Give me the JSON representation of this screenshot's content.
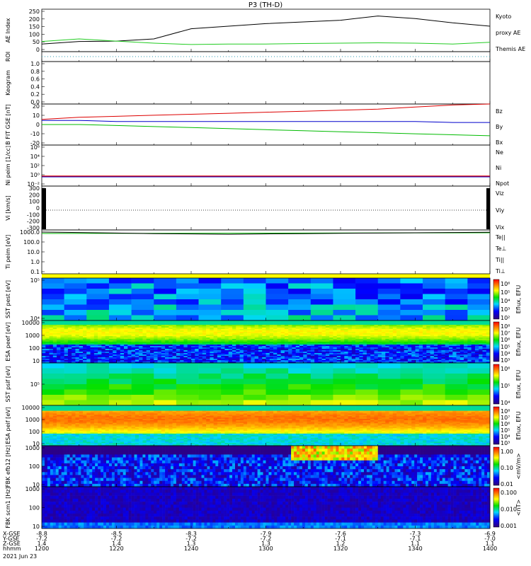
{
  "title": "P3 (TH-D)",
  "colors": {
    "ae_themis": "#000000",
    "ae_kyoto": "#22cc22",
    "red": "#dd0000",
    "green": "#00bb00",
    "blue": "#0000cc",
    "black": "#000000"
  },
  "panels": [
    {
      "id": "ae",
      "ylabel": [
        "AE Index"
      ],
      "ticks": [
        "250",
        "200",
        "150",
        "100",
        "50",
        "0"
      ],
      "legend": [
        {
          "text": "Kyoto",
          "color": "#22cc22"
        },
        {
          "text": "proxy AE",
          "color": "#22cc22"
        },
        {
          "text": "Themis AE",
          "color": "#000000"
        }
      ]
    },
    {
      "id": "roi",
      "ylabel": [
        "ROI"
      ],
      "ticks": [],
      "legend": []
    },
    {
      "id": "keogram",
      "ylabel": [
        "Keogram"
      ],
      "ticks": [
        "1.0",
        "0.8",
        "0.6",
        "0.4",
        "0.2",
        "0.0"
      ],
      "legend": []
    },
    {
      "id": "bfit",
      "ylabel": [
        "B FIT",
        "GSE",
        "[nT]"
      ],
      "ticks": [
        "20",
        "10",
        "0",
        "-10",
        "-20"
      ],
      "legend": [
        {
          "text": "Bz",
          "color": "#dd0000"
        },
        {
          "text": "By",
          "color": "#00bb00"
        },
        {
          "text": "Bx",
          "color": "#0000cc"
        }
      ]
    },
    {
      "id": "ni",
      "ylabel": [
        "Ni",
        "peim",
        "[1/cc]"
      ],
      "ticks": [
        "10⁶",
        "10⁴",
        "10²",
        "10⁰",
        "10⁻²"
      ],
      "legend": [
        {
          "text": "Ne",
          "color": "#dd0000"
        },
        {
          "text": "Ni",
          "color": "#000000"
        },
        {
          "text": "Npot",
          "color": "#0000cc"
        }
      ]
    },
    {
      "id": "vi",
      "ylabel": [
        "Vi",
        "[km/s]"
      ],
      "ticks": [
        "300",
        "200",
        "100",
        "0",
        "-100",
        "-200",
        "-300"
      ],
      "legend": [
        {
          "text": "Viz",
          "color": "#dd0000"
        },
        {
          "text": "Viy",
          "color": "#00bb00"
        },
        {
          "text": "Vix",
          "color": "#0000cc"
        }
      ]
    },
    {
      "id": "ti",
      "ylabel": [
        "Ti",
        "peim",
        "[eV]"
      ],
      "ticks": [
        "1000.0",
        "100.0",
        "10.0",
        "1.0",
        "0.1"
      ],
      "legend": [
        {
          "text": "Te||",
          "color": "#000000"
        },
        {
          "text": "Te⊥",
          "color": "#dd0000"
        },
        {
          "text": "Ti||",
          "color": "#00bb00"
        },
        {
          "text": "Ti⊥",
          "color": "#0000cc"
        }
      ]
    },
    {
      "id": "sst_e",
      "ylabel": [
        "SST",
        "pest",
        "[eV]"
      ],
      "ticks": [
        "10⁵",
        "10⁴"
      ],
      "cbar_ticks": [
        "10⁶",
        "10⁵",
        "10⁴",
        "10³",
        "10²"
      ],
      "cbar_label": "Eflux, EFU"
    },
    {
      "id": "esa_e",
      "ylabel": [
        "ESA",
        "peef",
        "[eV]"
      ],
      "ticks": [
        "10000",
        "1000",
        "100",
        "10"
      ],
      "cbar_ticks": [
        "10⁸",
        "10⁷",
        "10⁶",
        "10⁵",
        "10⁴",
        "10³"
      ],
      "cbar_label": "Eflux, EFU"
    },
    {
      "id": "sst_i",
      "ylabel": [
        "SST",
        "psif",
        "[eV]"
      ],
      "ticks": [
        "10⁵"
      ],
      "cbar_ticks": [
        "10⁶",
        "10⁵",
        "10⁴"
      ],
      "cbar_label": "Eflux, EFU"
    },
    {
      "id": "esa_i",
      "ylabel": [
        "ESA",
        "peif",
        "[eV]"
      ],
      "ticks": [
        "10000",
        "1000",
        "100",
        "10"
      ],
      "cbar_ticks": [
        "10⁸",
        "10⁷",
        "10⁶",
        "10⁵",
        "10⁴",
        "10³"
      ],
      "cbar_label": "Eflux, EFU"
    },
    {
      "id": "fbk_e",
      "ylabel": [
        "FBK",
        "efb12",
        "[Hz]"
      ],
      "ticks": [
        "1000",
        "100",
        "10"
      ],
      "cbar_ticks": [
        "1.00",
        "0.10",
        "0.01"
      ],
      "cbar_label": "<mV/m>"
    },
    {
      "id": "fbk_b",
      "ylabel": [
        "FBK",
        "scm1",
        "[Hz]"
      ],
      "ticks": [
        "1000",
        "100",
        "10"
      ],
      "cbar_ticks": [
        "0.100",
        "0.010",
        "0.001"
      ],
      "cbar_label": "<nT>"
    }
  ],
  "xaxis": {
    "row_labels": [
      "X-GSE",
      "Y-GSE",
      "Z-GSE",
      "hhmm",
      "2021 Jun 23"
    ],
    "columns": [
      {
        "x": "-8.8",
        "y": "-7.2",
        "z": "1.4",
        "t": "1200"
      },
      {
        "x": "-8.5",
        "y": "-7.2",
        "z": "1.4",
        "t": "1220"
      },
      {
        "x": "-8.3",
        "y": "-7.2",
        "z": "1.3",
        "t": "1240"
      },
      {
        "x": "-7.9",
        "y": "-7.2",
        "z": "1.3",
        "t": "1300"
      },
      {
        "x": "-7.6",
        "y": "-7.1",
        "z": "1.2",
        "t": "1320"
      },
      {
        "x": "-7.3",
        "y": "-7.1",
        "z": "1.1",
        "t": "1340"
      },
      {
        "x": "-6.9",
        "y": "-7.0",
        "z": "1.1",
        "t": "1400"
      }
    ]
  },
  "chart_data": {
    "type": "line",
    "title": "P3 (TH-D)",
    "x": [
      "1200",
      "1210",
      "1220",
      "1230",
      "1240",
      "1250",
      "1300",
      "1310",
      "1320",
      "1330",
      "1340",
      "1350",
      "1400"
    ],
    "xlabel": "hhmm",
    "ae_index": {
      "ylim": [
        0,
        250
      ],
      "series": [
        {
          "name": "Themis AE",
          "values": [
            45,
            60,
            62,
            75,
            135,
            150,
            165,
            175,
            185,
            210,
            195,
            170,
            150
          ]
        },
        {
          "name": "Kyoto proxy AE",
          "values": [
            60,
            75,
            62,
            50,
            42,
            45,
            45,
            48,
            50,
            52,
            50,
            45,
            55
          ]
        }
      ]
    },
    "b_fit": {
      "ylim": [
        -20,
        20
      ],
      "series": [
        {
          "name": "Bz",
          "values": [
            5,
            7,
            8,
            9,
            10,
            11,
            12,
            13,
            14,
            15,
            17,
            19,
            20
          ]
        },
        {
          "name": "By",
          "values": [
            0,
            0,
            -1,
            -2,
            -3,
            -4,
            -5,
            -6,
            -7,
            -8,
            -9,
            -10,
            -11
          ]
        },
        {
          "name": "Bx",
          "values": [
            4,
            4,
            3,
            3,
            3,
            3,
            3,
            3,
            3,
            3,
            3,
            2,
            2
          ]
        }
      ]
    },
    "ti": {
      "ylim": [
        0.1,
        1000
      ],
      "series": [
        {
          "name": "Te||",
          "values": [
            1000,
            900,
            800,
            700,
            650,
            600,
            650,
            700,
            750,
            800,
            850,
            900,
            950
          ]
        }
      ]
    }
  }
}
